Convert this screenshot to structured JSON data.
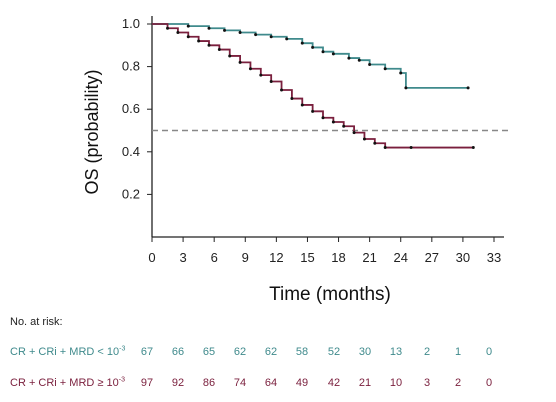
{
  "chart_data": {
    "type": "line",
    "xlabel": "Time (months)",
    "ylabel": "OS (probability)",
    "xlim": [
      0,
      33
    ],
    "ylim": [
      0,
      1.0
    ],
    "x_ticks": [
      "0",
      "3",
      "6",
      "9",
      "12",
      "15",
      "18",
      "21",
      "24",
      "27",
      "30",
      "33"
    ],
    "y_ticks": [
      "0.2",
      "0.4",
      "0.6",
      "0.8",
      "1.0"
    ],
    "reference_line": {
      "y": 0.5,
      "style": "dashed",
      "color": "#888888"
    },
    "series": [
      {
        "color": "#3f8a8c",
        "step": true,
        "x": [
          0,
          3.5,
          5.5,
          7,
          8.5,
          10,
          11.5,
          13,
          14.5,
          15.5,
          16.5,
          17.5,
          19,
          20,
          21,
          22.5,
          24,
          24.5,
          30.5
        ],
        "y": [
          1.0,
          0.99,
          0.98,
          0.97,
          0.96,
          0.95,
          0.94,
          0.93,
          0.91,
          0.89,
          0.87,
          0.86,
          0.84,
          0.83,
          0.81,
          0.79,
          0.77,
          0.7,
          0.7
        ]
      },
      {
        "color": "#7a1f3d",
        "step": true,
        "x": [
          0,
          1.5,
          2.5,
          3.5,
          4.5,
          5.5,
          6.5,
          7.5,
          8.5,
          9.5,
          10.5,
          11.5,
          12.5,
          13.5,
          14.5,
          15.5,
          16.5,
          17.5,
          18.5,
          19.5,
          20.5,
          21.5,
          22.5,
          25,
          31
        ],
        "y": [
          1.0,
          0.98,
          0.96,
          0.94,
          0.92,
          0.9,
          0.88,
          0.85,
          0.82,
          0.79,
          0.76,
          0.73,
          0.69,
          0.65,
          0.62,
          0.59,
          0.56,
          0.54,
          0.52,
          0.49,
          0.46,
          0.44,
          0.42,
          0.42,
          0.42
        ]
      }
    ]
  },
  "risk_table": {
    "title": "No. at risk:",
    "rows": [
      {
        "label": "CR + CRi + MRD < 10",
        "exponent": "-3",
        "color": "#3f8a8c",
        "values": [
          "67",
          "66",
          "65",
          "62",
          "62",
          "58",
          "52",
          "30",
          "13",
          "2",
          "1",
          "0"
        ]
      },
      {
        "label": "CR + CRi + MRD ≥ 10",
        "exponent": "-3",
        "color": "#7a1f3d",
        "values": [
          "97",
          "92",
          "86",
          "74",
          "64",
          "49",
          "42",
          "21",
          "10",
          "3",
          "2",
          "0"
        ]
      }
    ]
  }
}
